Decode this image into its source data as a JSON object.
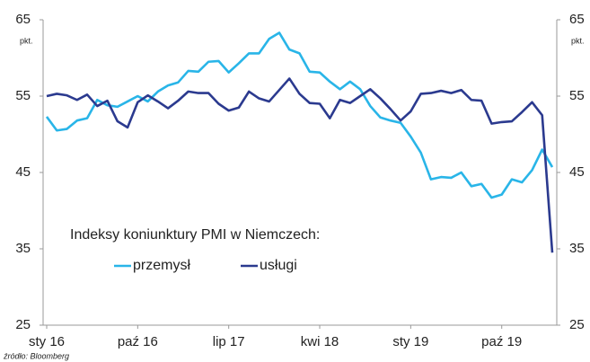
{
  "chart_data": {
    "type": "line",
    "legend_title": "Indeksy koniunktury PMI w Niemczech:",
    "y_unit": "pkt.",
    "source": "źródło: Bloomberg",
    "categories": [
      "sty 16",
      null,
      null,
      null,
      null,
      null,
      null,
      null,
      null,
      "paź 16",
      null,
      null,
      null,
      null,
      null,
      null,
      null,
      null,
      "lip 17",
      null,
      null,
      null,
      null,
      null,
      null,
      null,
      null,
      "kwi 18",
      null,
      null,
      null,
      null,
      null,
      null,
      null,
      null,
      "sty 19",
      null,
      null,
      null,
      null,
      null,
      null,
      null,
      null,
      "paź 19",
      null,
      null,
      null,
      null,
      null
    ],
    "series": [
      {
        "name": "przemysł",
        "color": "#29b5e8",
        "values": [
          52.3,
          50.5,
          50.7,
          51.8,
          52.1,
          54.5,
          53.8,
          53.6,
          54.3,
          55.0,
          54.3,
          55.6,
          56.4,
          56.8,
          58.3,
          58.2,
          59.5,
          59.6,
          58.1,
          59.3,
          60.6,
          60.6,
          62.5,
          63.3,
          61.1,
          60.6,
          58.2,
          58.1,
          56.9,
          55.9,
          56.9,
          55.9,
          53.7,
          52.2,
          51.8,
          51.5,
          49.7,
          47.6,
          44.1,
          44.4,
          44.3,
          45.0,
          43.2,
          43.5,
          41.7,
          42.1,
          44.1,
          43.7,
          45.3,
          48.0,
          45.7
        ]
      },
      {
        "name": "usługi",
        "color": "#2b3a8f",
        "values": [
          55.0,
          55.3,
          55.1,
          54.5,
          55.2,
          53.7,
          54.4,
          51.7,
          50.9,
          54.2,
          55.1,
          54.3,
          53.4,
          54.4,
          55.6,
          55.4,
          55.4,
          54.0,
          53.1,
          53.5,
          55.6,
          54.7,
          54.3,
          55.8,
          57.3,
          55.3,
          54.1,
          54.0,
          52.1,
          54.5,
          54.1,
          55.0,
          55.9,
          54.7,
          53.3,
          51.8,
          53.0,
          55.3,
          55.4,
          55.7,
          55.4,
          55.8,
          54.5,
          54.4,
          51.4,
          51.6,
          51.7,
          52.9,
          54.2,
          52.5,
          34.5
        ]
      }
    ],
    "ylim": [
      25,
      65
    ],
    "yticks": [
      25,
      35,
      45,
      55,
      65
    ],
    "y2lim": [
      25,
      65
    ],
    "y2ticks": [
      25,
      35,
      45,
      55,
      65
    ],
    "grid": false
  }
}
